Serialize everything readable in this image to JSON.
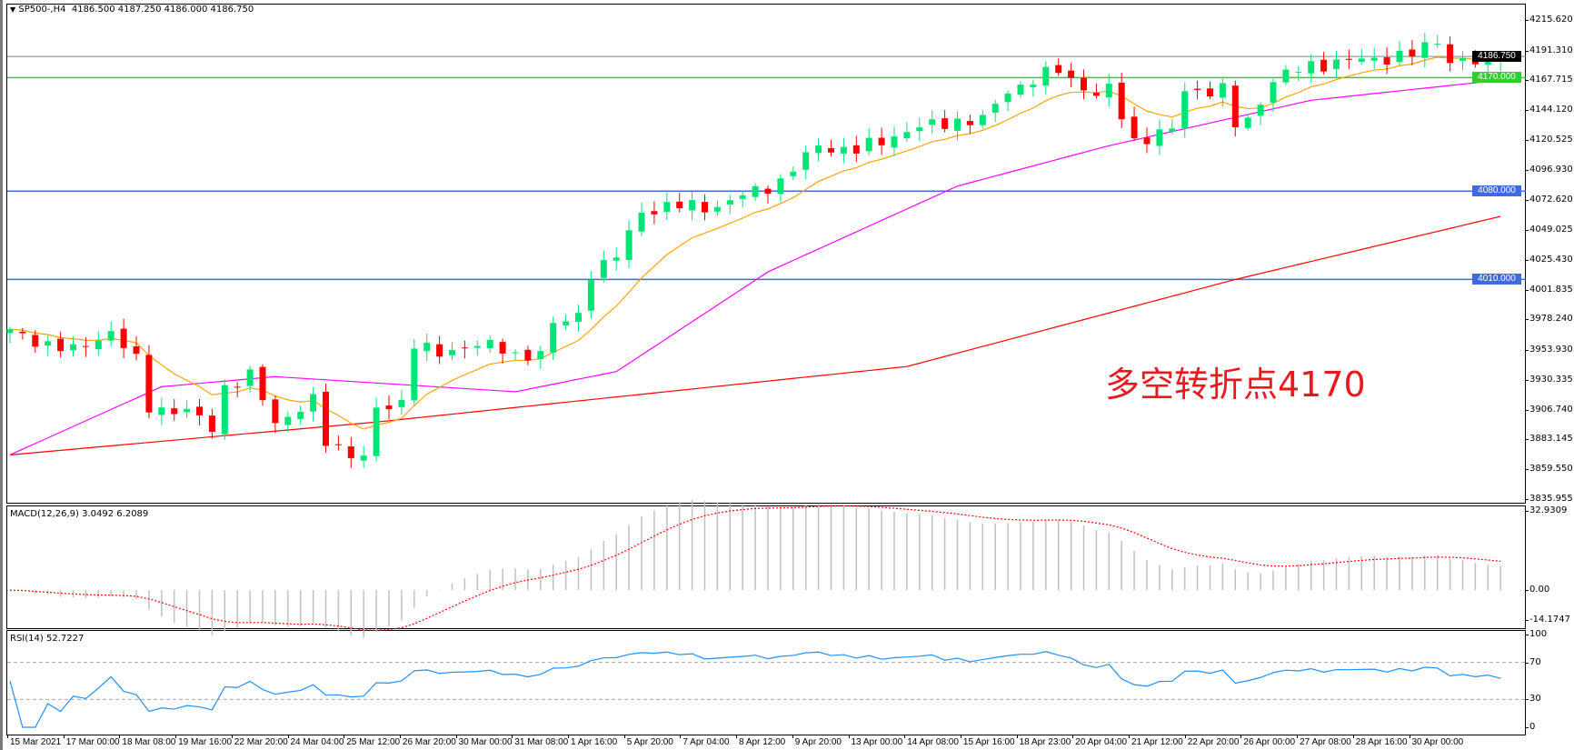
{
  "header": {
    "symbol": "SP500-,H4",
    "ohlc": "4186.500 4187.250 4186.000 4186.750",
    "menu_icon": "triangle-down-icon"
  },
  "annotation": "多空转折点4170",
  "price_axis": {
    "ticks": [
      "4215.620",
      "4191.310",
      "4167.715",
      "4144.120",
      "4120.525",
      "4096.930",
      "4072.620",
      "4049.025",
      "4025.430",
      "4001.835",
      "3978.240",
      "3953.930",
      "3930.335",
      "3906.740",
      "3883.145",
      "3859.550",
      "3835.955"
    ],
    "current_price": "4186.750",
    "levels": [
      {
        "label": "4170.000",
        "value": 4170,
        "color": "#33cc33"
      },
      {
        "label": "4080.000",
        "value": 4080,
        "color": "#4169e1"
      },
      {
        "label": "4010.000",
        "value": 4010,
        "color": "#4169e1"
      }
    ]
  },
  "macd": {
    "title": "MACD(12,26,9) 3.0492 6.2089",
    "ticks": [
      "32.9309",
      "0.00",
      "-14.1747"
    ]
  },
  "rsi": {
    "title": "RSI(14) 52.7227",
    "ticks": [
      "100",
      "70",
      "30",
      "0"
    ]
  },
  "time_axis": [
    "15 Mar 2021",
    "17 Mar 00:00",
    "18 Mar 08:00",
    "19 Mar 16:00",
    "22 Mar 20:00",
    "24 Mar 04:00",
    "25 Mar 12:00",
    "26 Mar 20:00",
    "30 Mar 00:00",
    "31 Mar 08:00",
    "1 Apr 16:00",
    "5 Apr 20:00",
    "7 Apr 04:00",
    "8 Apr 12:00",
    "9 Apr 20:00",
    "13 Apr 00:00",
    "14 Apr 08:00",
    "15 Apr 16:00",
    "18 Apr 23:00",
    "20 Apr 04:00",
    "21 Apr 12:00",
    "22 Apr 20:00",
    "26 Apr 00:00",
    "27 Apr 08:00",
    "28 Apr 16:00",
    "30 Apr 00:00"
  ],
  "chart_data": {
    "type": "candlestick",
    "symbol": "SP500-",
    "timeframe": "H4",
    "ylim": [
      3835.955,
      4215.62
    ],
    "candle_count": 119,
    "close_waypoints": [
      [
        0,
        3968
      ],
      [
        1,
        3965
      ],
      [
        5,
        3953
      ],
      [
        8,
        3969
      ],
      [
        10,
        3945
      ],
      [
        11,
        3909
      ],
      [
        14,
        3905
      ],
      [
        16,
        3893
      ],
      [
        17,
        3925
      ],
      [
        19,
        3933
      ],
      [
        21,
        3897
      ],
      [
        24,
        3913
      ],
      [
        25,
        3881
      ],
      [
        28,
        3869
      ],
      [
        29,
        3905
      ],
      [
        31,
        3913
      ],
      [
        32,
        3961
      ],
      [
        34,
        3949
      ],
      [
        37,
        3961
      ],
      [
        40,
        3949
      ],
      [
        42,
        3953
      ],
      [
        43,
        3973
      ],
      [
        45,
        3981
      ],
      [
        46,
        4016
      ],
      [
        48,
        4028
      ],
      [
        50,
        4064
      ],
      [
        52,
        4068
      ],
      [
        56,
        4068
      ],
      [
        58,
        4076
      ],
      [
        61,
        4088
      ],
      [
        64,
        4116
      ],
      [
        67,
        4112
      ],
      [
        69,
        4120
      ],
      [
        71,
        4128
      ],
      [
        75,
        4136
      ],
      [
        77,
        4136
      ],
      [
        79,
        4160
      ],
      [
        81,
        4168
      ],
      [
        83,
        4176
      ],
      [
        86,
        4156
      ],
      [
        87,
        4160
      ],
      [
        89,
        4120
      ],
      [
        92,
        4128
      ],
      [
        93,
        4160
      ],
      [
        96,
        4160
      ],
      [
        97,
        4132
      ],
      [
        98,
        4136
      ],
      [
        100,
        4168
      ],
      [
        103,
        4180
      ],
      [
        107,
        4184
      ],
      [
        111,
        4188
      ],
      [
        113,
        4200
      ],
      [
        114,
        4184
      ],
      [
        117,
        4180
      ],
      [
        118,
        4186.75
      ]
    ],
    "ma_orange": "EMA of closes",
    "ma_magenta_waypoints": [
      [
        0,
        3871
      ],
      [
        12,
        3925
      ],
      [
        21,
        3933
      ],
      [
        40,
        3921
      ],
      [
        48,
        3937
      ],
      [
        60,
        4016
      ],
      [
        75,
        4084
      ],
      [
        87,
        4116
      ],
      [
        103,
        4152
      ],
      [
        118,
        4168
      ]
    ],
    "ma_red_waypoints": [
      [
        0,
        3871
      ],
      [
        29,
        3897
      ],
      [
        71,
        3941
      ],
      [
        97,
        4010
      ],
      [
        118,
        4060
      ]
    ],
    "colors": {
      "bull": "#00e676",
      "bear": "#ff0000",
      "ma_fast": "#ffa500",
      "ma_mid": "#ff00ff",
      "ma_slow": "#ff0000",
      "rsi": "#1e90ff",
      "macd_hist": "#c0c0c0",
      "macd_signal": "#ff0000"
    },
    "macd_range": [
      -14.1747,
      32.9309
    ],
    "rsi_range": [
      0,
      100
    ],
    "rsi_levels": [
      30,
      70
    ]
  }
}
